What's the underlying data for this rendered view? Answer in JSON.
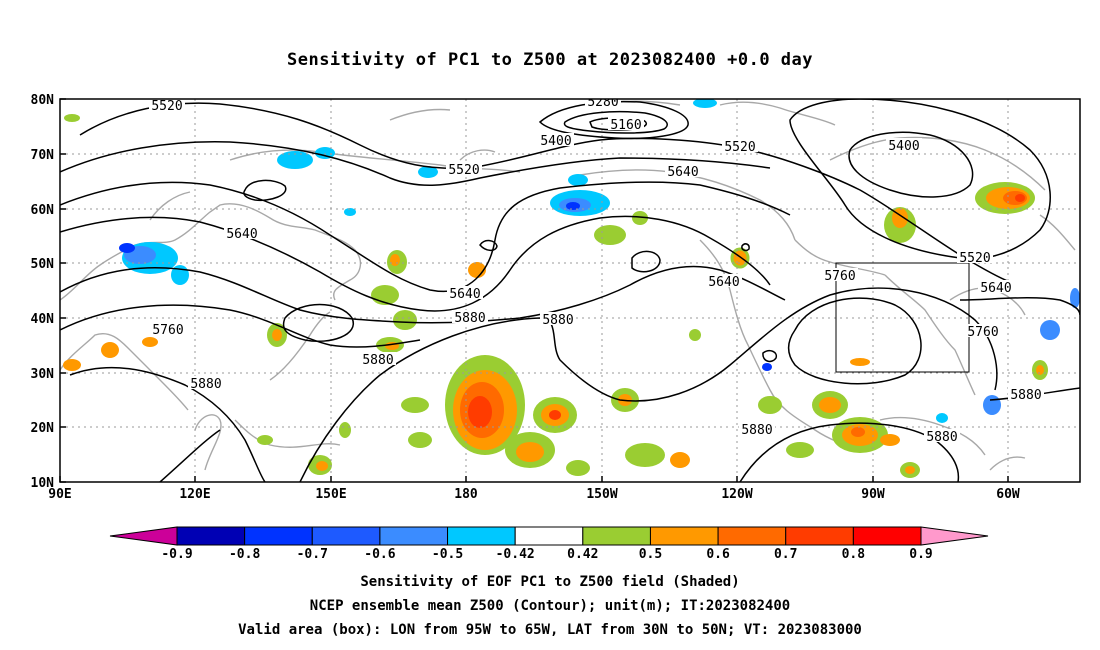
{
  "title": "Sensitivity of PC1 to Z500 at 2023082400 +0.0 day",
  "lat_labels": [
    "80N",
    "70N",
    "60N",
    "50N",
    "40N",
    "30N",
    "20N",
    "10N"
  ],
  "lon_labels": [
    "90E",
    "120E",
    "150E",
    "180",
    "150W",
    "120W",
    "90W",
    "60W"
  ],
  "contour_labels": [
    "5520",
    "5280",
    "5160",
    "5400",
    "5520",
    "5400",
    "5640",
    "5520",
    "5640",
    "5520",
    "5640",
    "5640",
    "5760",
    "5760",
    "5880",
    "5880",
    "5640",
    "5760",
    "5880",
    "5880",
    "5880",
    "5880",
    "5880"
  ],
  "colorbar": {
    "labels": [
      "-0.9",
      "-0.8",
      "-0.7",
      "-0.6",
      "-0.5",
      "-0.42",
      "0.42",
      "0.5",
      "0.6",
      "0.7",
      "0.8",
      "0.9"
    ],
    "colors": [
      "#0000b4",
      "#0033ff",
      "#1e5aff",
      "#3b8cff",
      "#00c8ff",
      "#ffffff",
      "#9acd32",
      "#ff9900",
      "#ff6a00",
      "#ff3c00",
      "#ff0000"
    ],
    "low_end_color": "#cc0099",
    "high_end_color": "#ff99cc"
  },
  "valid_box": {
    "lon_from": "95W",
    "lon_to": "65W",
    "lat_from": "30N",
    "lat_to": "50N"
  },
  "footer": {
    "line1": "Sensitivity of EOF PC1 to Z500 field (Shaded)",
    "line2": "NCEP ensemble mean Z500 (Contour); unit(m); IT:2023082400",
    "line3": "Valid area (box): LON from 95W to 65W, LAT from 30N to 50N; VT: 2023083000"
  }
}
